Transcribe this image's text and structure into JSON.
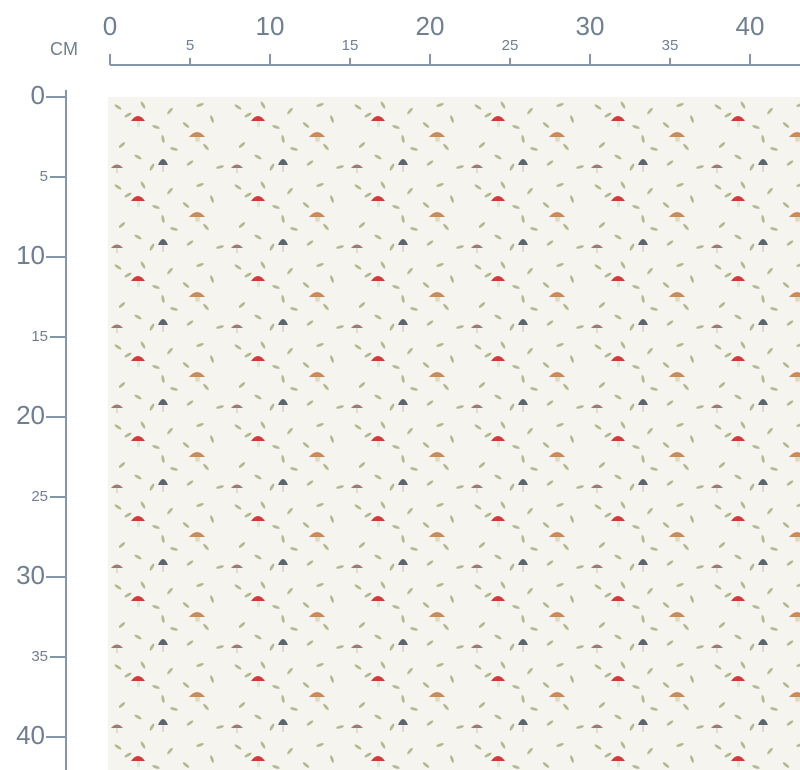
{
  "ruler": {
    "unit": "CM",
    "top_ticks": [
      0,
      5,
      10,
      15,
      20,
      25,
      30,
      35,
      40
    ],
    "left_ticks": [
      0,
      5,
      10,
      15,
      20,
      25,
      30,
      35,
      40
    ]
  }
}
